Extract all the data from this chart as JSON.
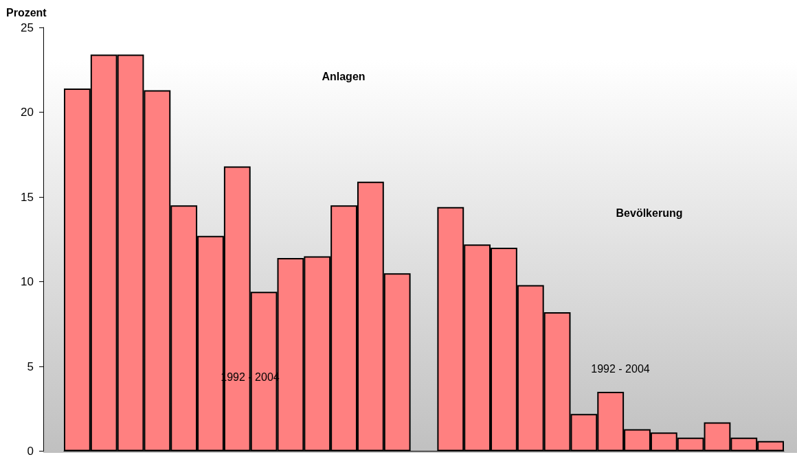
{
  "chart_data": {
    "type": "bar",
    "ylabel": "Prozent",
    "categories": [
      null,
      null,
      null,
      null,
      null,
      null,
      null,
      null,
      null,
      null,
      null,
      null,
      null,
      null,
      null,
      null,
      null,
      null,
      null,
      null,
      null,
      null,
      null,
      null,
      null,
      null,
      null
    ],
    "values": [
      21.4,
      23.4,
      23.4,
      21.3,
      14.5,
      12.7,
      16.8,
      9.4,
      11.4,
      11.5,
      14.5,
      15.9,
      10.5,
      null,
      14.4,
      12.2,
      12.0,
      9.8,
      8.2,
      2.2,
      3.5,
      1.3,
      1.1,
      0.8,
      1.7,
      0.8,
      0.6
    ],
    "color": "#ff8080",
    "ylim": [
      0,
      25
    ],
    "yticks": [
      0,
      5,
      10,
      15,
      20,
      25
    ],
    "tick_labels": "y",
    "annotations": [
      "Anlagen",
      "1992 - 2004",
      "Bevölkerung",
      "1992 - 2004"
    ]
  }
}
